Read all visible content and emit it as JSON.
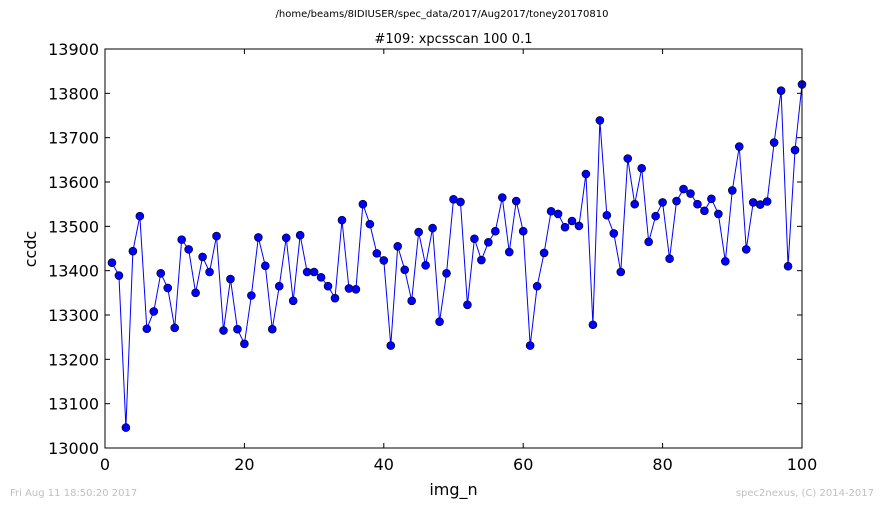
{
  "suptitle": "/home/beams/8IDIUSER/spec_data/2017/Aug2017/toney20170810",
  "footer": {
    "timestamp": "Fri Aug 11 18:50:20 2017",
    "credit": "spec2nexus, (C) 2014-2017"
  },
  "colors": {
    "series": "#0000ff",
    "axes": "#000000"
  },
  "chart_data": {
    "type": "line",
    "title": "#109: xpcsscan 100 0.1",
    "xlabel": "img_n",
    "ylabel": "ccdc",
    "xlim": [
      0,
      100
    ],
    "ylim": [
      13000,
      13900
    ],
    "xticks": [
      0,
      20,
      40,
      60,
      80,
      100
    ],
    "yticks": [
      13000,
      13100,
      13200,
      13300,
      13400,
      13500,
      13600,
      13700,
      13800,
      13900
    ],
    "grid": false,
    "series": [
      {
        "marker": "circle",
        "x": [
          1,
          2,
          3,
          4,
          5,
          6,
          7,
          8,
          9,
          10,
          11,
          12,
          13,
          14,
          15,
          16,
          17,
          18,
          19,
          20,
          21,
          22,
          23,
          24,
          25,
          26,
          27,
          28,
          29,
          30,
          31,
          32,
          33,
          34,
          35,
          36,
          37,
          38,
          39,
          40,
          41,
          42,
          43,
          44,
          45,
          46,
          47,
          48,
          49,
          50,
          51,
          52,
          53,
          54,
          55,
          56,
          57,
          58,
          59,
          60,
          61,
          62,
          63,
          64,
          65,
          66,
          67,
          68,
          69,
          70,
          71,
          72,
          73,
          74,
          75,
          76,
          77,
          78,
          79,
          80,
          81,
          82,
          83,
          84,
          85,
          86,
          87,
          88,
          89,
          90,
          91,
          92,
          93,
          94,
          95,
          96,
          97,
          98,
          99,
          100
        ],
        "y": [
          13418,
          13389,
          13046,
          13444,
          13523,
          13269,
          13308,
          13394,
          13361,
          13271,
          13470,
          13448,
          13350,
          13431,
          13397,
          13478,
          13265,
          13381,
          13268,
          13235,
          13344,
          13475,
          13411,
          13268,
          13365,
          13474,
          13332,
          13480,
          13397,
          13397,
          13385,
          13365,
          13338,
          13514,
          13360,
          13358,
          13550,
          13505,
          13439,
          13423,
          13231,
          13455,
          13402,
          13332,
          13487,
          13412,
          13496,
          13285,
          13394,
          13561,
          13555,
          13323,
          13472,
          13424,
          13464,
          13489,
          13565,
          13442,
          13557,
          13489,
          13231,
          13365,
          13440,
          13534,
          13528,
          13498,
          13512,
          13501,
          13618,
          13278,
          13739,
          13525,
          13484,
          13397,
          13653,
          13550,
          13631,
          13465,
          13523,
          13554,
          13427,
          13557,
          13584,
          13574,
          13550,
          13535,
          13562,
          13528,
          13421,
          13581,
          13680,
          13448,
          13554,
          13549,
          13556,
          13689,
          13806,
          13410,
          13672,
          13820
        ]
      }
    ]
  }
}
